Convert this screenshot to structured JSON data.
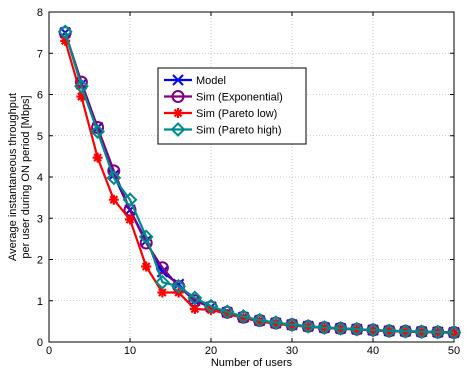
{
  "chart_data": {
    "type": "line",
    "xlabel": "Number of users",
    "ylabel_line1": "Average instantaneous throughput",
    "ylabel_line2": "per user during ON period [Mbps]",
    "xlim": [
      0,
      50
    ],
    "ylim": [
      0,
      8
    ],
    "xticks": [
      0,
      10,
      20,
      30,
      40,
      50
    ],
    "yticks": [
      0,
      1,
      2,
      3,
      4,
      5,
      6,
      7,
      8
    ],
    "grid": true,
    "legend_position": "upper-center",
    "x": [
      2,
      4,
      6,
      8,
      10,
      12,
      14,
      16,
      18,
      20,
      22,
      24,
      26,
      28,
      30,
      32,
      34,
      36,
      38,
      40,
      42,
      44,
      46,
      48,
      50
    ],
    "series": [
      {
        "name": "Model",
        "color": "#0000ff",
        "marker": "x",
        "values": [
          7.5,
          6.25,
          5.2,
          4.05,
          3.2,
          2.45,
          1.7,
          1.4,
          1.0,
          0.85,
          0.72,
          0.6,
          0.52,
          0.46,
          0.42,
          0.38,
          0.35,
          0.33,
          0.31,
          0.29,
          0.27,
          0.26,
          0.25,
          0.24,
          0.23
        ]
      },
      {
        "name": "Sim (Exponential)",
        "color": "#800080",
        "marker": "circle",
        "values": [
          7.5,
          6.3,
          5.2,
          4.15,
          3.2,
          2.4,
          1.8,
          1.35,
          1.0,
          0.85,
          0.72,
          0.6,
          0.52,
          0.46,
          0.42,
          0.38,
          0.35,
          0.33,
          0.31,
          0.29,
          0.27,
          0.26,
          0.25,
          0.24,
          0.23
        ]
      },
      {
        "name": "Sim (Pareto low)",
        "color": "#ff0000",
        "marker": "asterisk",
        "values": [
          7.3,
          5.95,
          4.47,
          3.45,
          2.97,
          1.83,
          1.2,
          1.2,
          0.8,
          0.78,
          0.68,
          0.58,
          0.5,
          0.44,
          0.4,
          0.37,
          0.34,
          0.32,
          0.3,
          0.28,
          0.26,
          0.25,
          0.24,
          0.23,
          0.22
        ]
      },
      {
        "name": "Sim (Pareto high)",
        "color": "#008b8b",
        "marker": "diamond",
        "values": [
          7.52,
          6.2,
          5.1,
          3.98,
          3.45,
          2.55,
          1.45,
          1.35,
          1.07,
          0.87,
          0.73,
          0.62,
          0.53,
          0.47,
          0.42,
          0.38,
          0.35,
          0.33,
          0.31,
          0.29,
          0.27,
          0.26,
          0.25,
          0.24,
          0.23
        ]
      }
    ]
  }
}
